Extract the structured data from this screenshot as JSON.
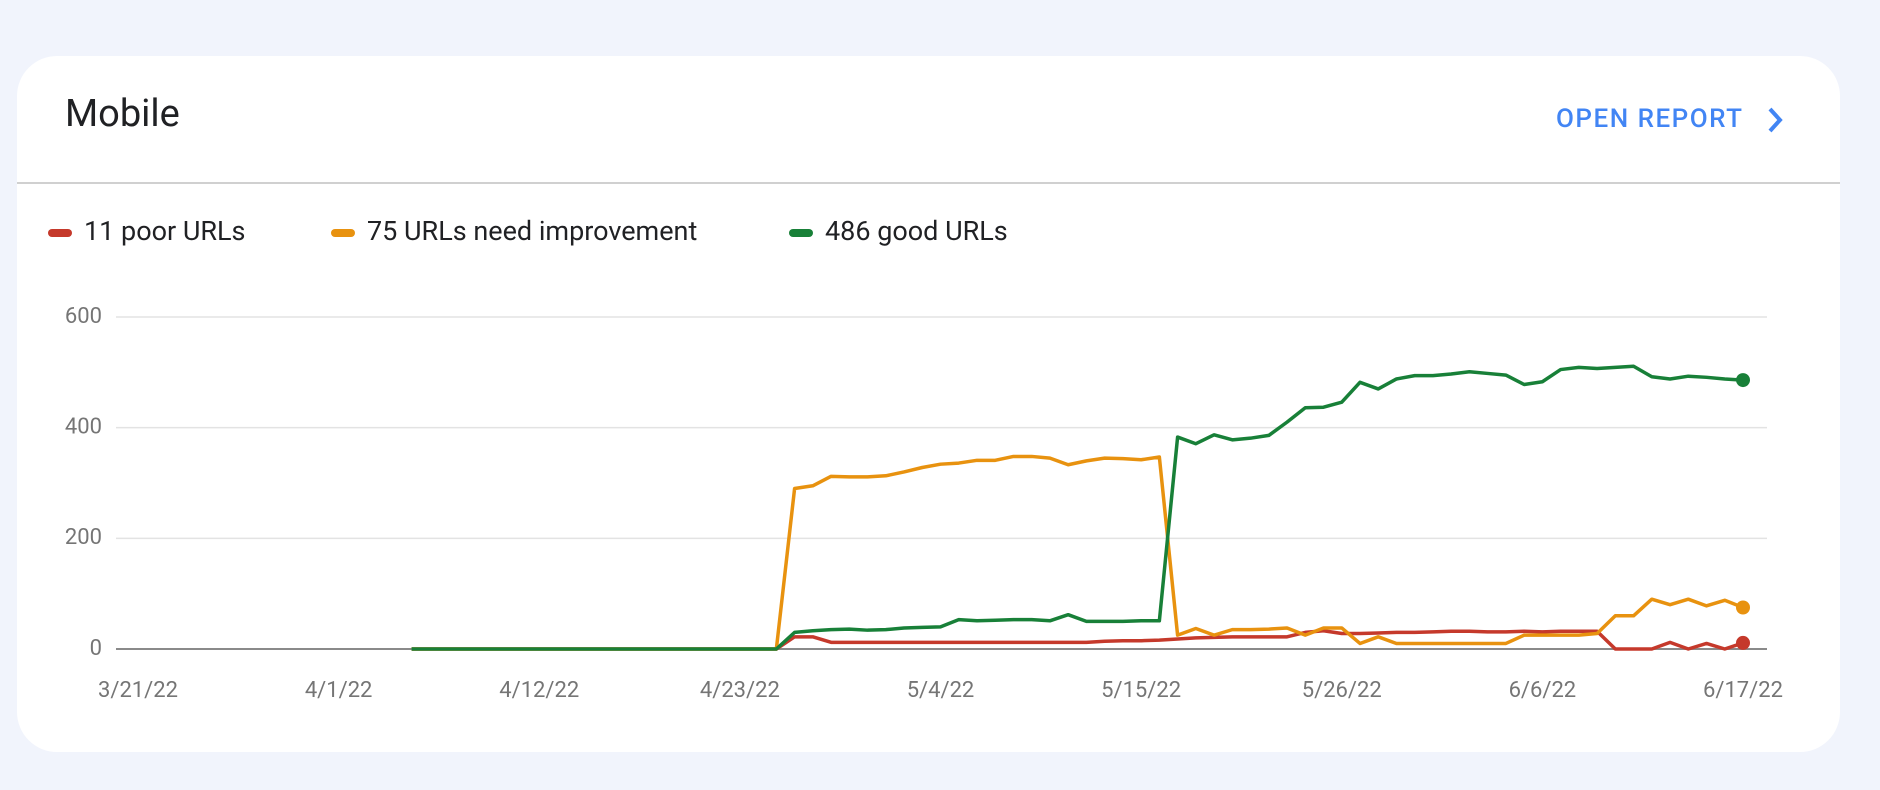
{
  "header": {
    "title": "Mobile",
    "action": "OPEN REPORT"
  },
  "chart_data": {
    "type": "line",
    "x": [
      "4/5/22",
      "4/6/22",
      "4/7/22",
      "4/8/22",
      "4/9/22",
      "4/10/22",
      "4/11/22",
      "4/12/22",
      "4/13/22",
      "4/14/22",
      "4/15/22",
      "4/16/22",
      "4/17/22",
      "4/18/22",
      "4/19/22",
      "4/20/22",
      "4/21/22",
      "4/22/22",
      "4/23/22",
      "4/24/22",
      "4/25/22",
      "4/26/22",
      "4/27/22",
      "4/28/22",
      "4/29/22",
      "4/30/22",
      "5/1/22",
      "5/2/22",
      "5/3/22",
      "5/4/22",
      "5/5/22",
      "5/6/22",
      "5/7/22",
      "5/8/22",
      "5/9/22",
      "5/10/22",
      "5/11/22",
      "5/12/22",
      "5/13/22",
      "5/14/22",
      "5/15/22",
      "5/16/22",
      "5/17/22",
      "5/18/22",
      "5/19/22",
      "5/20/22",
      "5/21/22",
      "5/22/22",
      "5/23/22",
      "5/24/22",
      "5/25/22",
      "5/26/22",
      "5/27/22",
      "5/28/22",
      "5/29/22",
      "5/30/22",
      "5/31/22",
      "6/1/22",
      "6/2/22",
      "6/3/22",
      "6/4/22",
      "6/5/22",
      "6/6/22",
      "6/7/22",
      "6/8/22",
      "6/9/22",
      "6/10/22",
      "6/11/22",
      "6/12/22",
      "6/13/22",
      "6/14/22",
      "6/15/22",
      "6/16/22",
      "6/17/22"
    ],
    "xlim": [
      "3/21/22",
      "6/17/22"
    ],
    "xticks": [
      "3/21/22",
      "4/1/22",
      "4/12/22",
      "4/23/22",
      "5/4/22",
      "5/15/22",
      "5/26/22",
      "6/6/22",
      "6/17/22"
    ],
    "ylim": [
      0,
      600
    ],
    "yticks": [
      0,
      200,
      400,
      600
    ],
    "grid": true,
    "series": [
      {
        "name": "11 poor URLs",
        "color": "#c5392b",
        "values": [
          0,
          0,
          0,
          0,
          0,
          0,
          0,
          0,
          0,
          0,
          0,
          0,
          0,
          0,
          0,
          0,
          0,
          0,
          0,
          0,
          0,
          22,
          22,
          12,
          12,
          12,
          12,
          12,
          12,
          12,
          12,
          12,
          12,
          12,
          12,
          12,
          12,
          12,
          14,
          15,
          15,
          16,
          18,
          20,
          21,
          22,
          22,
          22,
          22,
          30,
          33,
          28,
          28,
          29,
          30,
          30,
          31,
          32,
          32,
          31,
          31,
          32,
          31,
          32,
          32,
          32,
          0,
          0,
          0,
          12,
          0,
          10,
          0,
          11
        ]
      },
      {
        "name": "75 URLs need improvement",
        "color": "#e8920f",
        "values": [
          0,
          0,
          0,
          0,
          0,
          0,
          0,
          0,
          0,
          0,
          0,
          0,
          0,
          0,
          0,
          0,
          0,
          0,
          0,
          0,
          0,
          290,
          295,
          312,
          311,
          311,
          313,
          320,
          328,
          334,
          336,
          341,
          341,
          348,
          348,
          345,
          333,
          340,
          345,
          344,
          342,
          347,
          25,
          37,
          25,
          35,
          35,
          36,
          38,
          25,
          38,
          38,
          10,
          22,
          10,
          10,
          10,
          10,
          10,
          10,
          10,
          25,
          25,
          25,
          25,
          28,
          60,
          60,
          90,
          80,
          90,
          78,
          88,
          75
        ]
      },
      {
        "name": "486 good URLs",
        "color": "#188038",
        "values": [
          0,
          0,
          0,
          0,
          0,
          0,
          0,
          0,
          0,
          0,
          0,
          0,
          0,
          0,
          0,
          0,
          0,
          0,
          0,
          0,
          0,
          30,
          33,
          35,
          36,
          34,
          35,
          38,
          39,
          40,
          53,
          51,
          52,
          53,
          53,
          51,
          62,
          50,
          50,
          50,
          51,
          51,
          383,
          371,
          387,
          378,
          381,
          386,
          410,
          436,
          437,
          446,
          482,
          470,
          488,
          494,
          494,
          497,
          501,
          498,
          495,
          478,
          483,
          505,
          509,
          507,
          509,
          511,
          492,
          488,
          493,
          491,
          488,
          486
        ]
      }
    ]
  }
}
